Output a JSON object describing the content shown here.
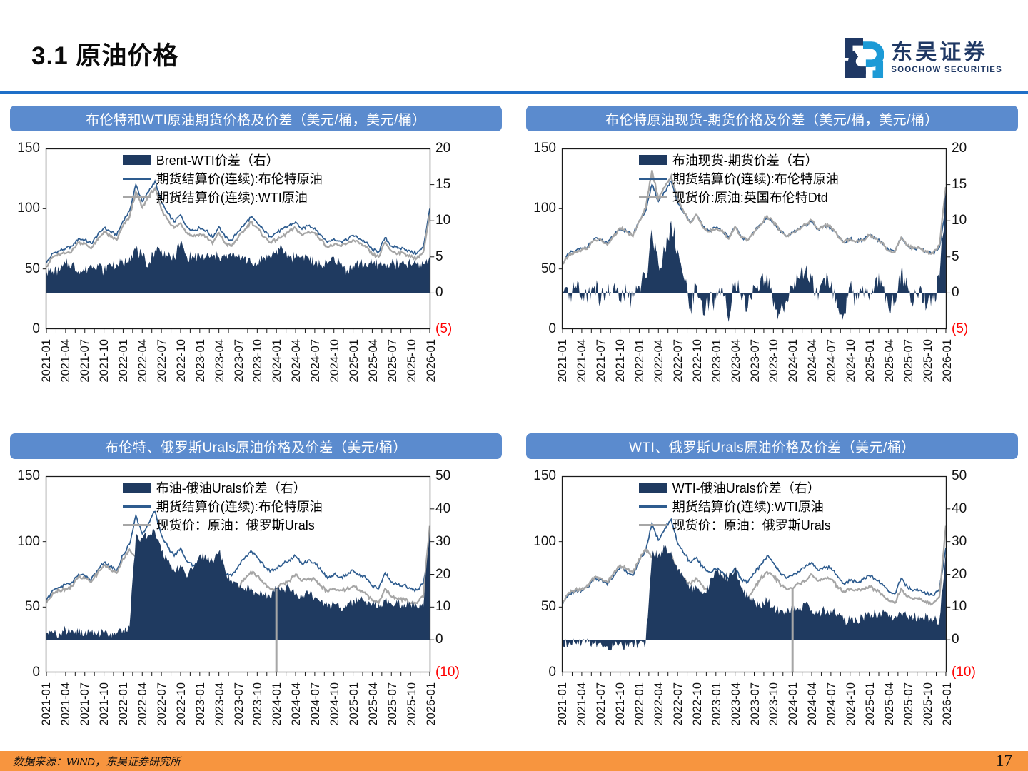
{
  "page": {
    "title": "3.1 原油价格",
    "footer_source": "数据来源：WIND，东吴证券研究所",
    "page_number": "17"
  },
  "logo": {
    "name_cn": "东吴证券",
    "name_en": "SOOCHOW SECURITIES"
  },
  "colors": {
    "accent_divider": "#1e6fc8",
    "header_bar": "#5b8bce",
    "navy": "#1f3a60",
    "line_blue": "#2e5c8f",
    "line_gray": "#a6a6a6",
    "red": "#ff0000",
    "footer_orange": "#f7953f",
    "logo_navy": "#1f3864",
    "logo_lightblue": "#1c9ad6"
  },
  "x_tick_labels": [
    "2021-01",
    "2021-04",
    "2021-07",
    "2021-10",
    "2022-01",
    "2022-04",
    "2022-07",
    "2022-10",
    "2023-01",
    "2023-04",
    "2023-07",
    "2023-10",
    "2024-01",
    "2024-04",
    "2024-07",
    "2024-10",
    "2025-01",
    "2025-04",
    "2025-07",
    "2025-10",
    "2026-01"
  ],
  "chart_data": [
    {
      "type": "line+area",
      "title": "布伦特和WTI原油期货价格及价差（美元/桶，美元/桶）",
      "x_start": "2021-01",
      "x_end": "2026-01",
      "x_freq": "monthly",
      "left_axis": {
        "min": 0,
        "max": 150,
        "ticks": [
          150,
          100,
          50,
          0
        ]
      },
      "right_axis": {
        "min": -5,
        "max": 20,
        "ticks": [
          {
            "label": "20",
            "value": 20
          },
          {
            "label": "15",
            "value": 15
          },
          {
            "label": "10",
            "value": 10
          },
          {
            "label": "5",
            "value": 5
          },
          {
            "label": "0",
            "value": 0
          },
          {
            "label": "(5)",
            "value": -5,
            "red": true
          }
        ]
      },
      "series": [
        {
          "name": "Brent-WTI价差（右）",
          "kind": "area",
          "axis": "right",
          "color": "navy",
          "values": [
            3,
            3,
            3,
            4,
            4,
            3,
            3,
            4,
            4,
            3,
            4,
            4,
            4,
            5,
            6,
            5,
            4,
            6,
            6,
            5,
            5,
            7,
            5,
            5,
            5,
            5,
            5,
            5,
            5,
            5,
            5,
            5,
            4,
            4,
            5,
            5,
            6,
            6,
            5,
            5,
            5,
            5,
            4,
            4,
            4,
            5,
            4,
            3,
            4,
            4,
            4,
            4,
            4,
            4,
            4,
            4,
            4,
            4,
            4,
            4,
            5
          ]
        },
        {
          "name": "期货结算价(连续):布伦特原油",
          "kind": "line",
          "axis": "left",
          "color": "line_blue",
          "values": [
            55,
            63,
            65,
            67,
            69,
            75,
            74,
            71,
            78,
            84,
            81,
            78,
            90,
            98,
            120,
            106,
            114,
            123,
            105,
            96,
            89,
            95,
            85,
            82,
            84,
            82,
            76,
            85,
            76,
            74,
            81,
            87,
            93,
            88,
            82,
            77,
            80,
            83,
            86,
            89,
            83,
            86,
            84,
            78,
            72,
            75,
            73,
            74,
            78,
            75,
            72,
            66,
            64,
            76,
            69,
            67,
            67,
            64,
            63,
            68,
            100
          ]
        },
        {
          "name": "期货结算价(连续):WTI原油",
          "kind": "line",
          "axis": "left",
          "color": "line_gray",
          "values": [
            52,
            60,
            62,
            63,
            65,
            72,
            71,
            67,
            74,
            81,
            77,
            74,
            86,
            93,
            114,
            101,
            110,
            117,
            99,
            91,
            84,
            88,
            80,
            77,
            79,
            77,
            71,
            80,
            71,
            69,
            76,
            82,
            89,
            84,
            77,
            72,
            74,
            77,
            81,
            84,
            78,
            81,
            80,
            74,
            68,
            70,
            69,
            71,
            74,
            71,
            68,
            62,
            60,
            72,
            65,
            63,
            63,
            60,
            59,
            64,
            95
          ]
        }
      ]
    },
    {
      "type": "line+area",
      "title": "布伦特原油现货-期货价格及价差（美元/桶，美元/桶）",
      "x_start": "2021-01",
      "x_end": "2026-01",
      "x_freq": "monthly",
      "left_axis": {
        "min": 0,
        "max": 150,
        "ticks": [
          150,
          100,
          50,
          0
        ]
      },
      "right_axis": {
        "min": -5,
        "max": 20,
        "ticks": [
          {
            "label": "20",
            "value": 20
          },
          {
            "label": "15",
            "value": 15
          },
          {
            "label": "10",
            "value": 10
          },
          {
            "label": "5",
            "value": 5
          },
          {
            "label": "0",
            "value": 0
          },
          {
            "label": "(5)",
            "value": -5,
            "red": true
          }
        ]
      },
      "series": [
        {
          "name": "布油现货-期货价差（右）",
          "kind": "area",
          "axis": "right",
          "color": "navy",
          "values": [
            0,
            -1,
            1,
            -1,
            0,
            1,
            -1,
            0,
            1,
            -1,
            0,
            -1,
            1,
            2,
            9,
            4,
            6,
            10,
            6,
            2,
            -2,
            1,
            -3,
            -1,
            -1,
            1,
            -4,
            2,
            -1,
            -2,
            1,
            2,
            3,
            -2,
            -3,
            -1,
            1,
            2,
            3,
            2,
            -1,
            2,
            1,
            -2,
            -3,
            1,
            -1,
            1,
            -1,
            2,
            1,
            -2,
            -1,
            3,
            1,
            -1,
            1,
            -2,
            -1,
            2,
            14
          ]
        },
        {
          "name": "期货结算价(连续):布伦特原油",
          "kind": "line",
          "axis": "left",
          "color": "line_blue",
          "values": [
            55,
            63,
            65,
            67,
            69,
            75,
            74,
            71,
            78,
            84,
            81,
            78,
            90,
            98,
            120,
            106,
            114,
            123,
            105,
            96,
            89,
            95,
            85,
            82,
            84,
            82,
            76,
            85,
            76,
            74,
            81,
            87,
            93,
            88,
            82,
            77,
            80,
            83,
            86,
            89,
            83,
            86,
            84,
            78,
            72,
            75,
            73,
            74,
            78,
            75,
            72,
            66,
            64,
            76,
            69,
            67,
            67,
            64,
            63,
            68,
            100
          ]
        },
        {
          "name": "现货价:原油:英国布伦特Dtd",
          "kind": "line",
          "axis": "left",
          "color": "line_gray",
          "values": [
            54,
            62,
            64,
            66,
            68,
            74,
            74,
            70,
            77,
            84,
            81,
            77,
            90,
            100,
            132,
            108,
            118,
            127,
            109,
            97,
            88,
            95,
            84,
            81,
            83,
            82,
            75,
            85,
            76,
            74,
            81,
            87,
            94,
            89,
            82,
            77,
            80,
            83,
            87,
            90,
            83,
            86,
            85,
            78,
            72,
            75,
            73,
            74,
            78,
            75,
            72,
            65,
            64,
            76,
            69,
            67,
            67,
            64,
            63,
            70,
            118
          ]
        }
      ]
    },
    {
      "type": "line+area",
      "title": "布伦特、俄罗斯Urals原油价格及价差（美元/桶）",
      "x_start": "2021-01",
      "x_end": "2026-01",
      "x_freq": "monthly",
      "left_axis": {
        "min": 0,
        "max": 150,
        "ticks": [
          150,
          100,
          50,
          0
        ]
      },
      "right_axis": {
        "min": -10,
        "max": 50,
        "ticks": [
          {
            "label": "50",
            "value": 50
          },
          {
            "label": "40",
            "value": 40
          },
          {
            "label": "30",
            "value": 30
          },
          {
            "label": "20",
            "value": 20
          },
          {
            "label": "10",
            "value": 10
          },
          {
            "label": "0",
            "value": 0
          },
          {
            "label": "(10)",
            "value": -10,
            "red": true
          }
        ]
      },
      "vline": {
        "x_index": 36,
        "color": "line_gray",
        "note": "spot price data gap 2024-01"
      },
      "series": [
        {
          "name": "布油-俄油Urals价差（右）",
          "kind": "area",
          "axis": "right",
          "color": "navy",
          "values": [
            2,
            2,
            2,
            3,
            3,
            2,
            2,
            2,
            2,
            2,
            2,
            2,
            3,
            4,
            32,
            31,
            32,
            33,
            27,
            24,
            21,
            23,
            19,
            22,
            26,
            25,
            24,
            27,
            21,
            18,
            17,
            15,
            16,
            14,
            14,
            13,
            16,
            15,
            16,
            14,
            13,
            14,
            13,
            12,
            10,
            11,
            10,
            10,
            12,
            12,
            12,
            11,
            11,
            12,
            11,
            11,
            11,
            11,
            10,
            10,
            33
          ]
        },
        {
          "name": "期货结算价(连续):布伦特原油",
          "kind": "line",
          "axis": "left",
          "color": "line_blue",
          "values": [
            55,
            63,
            65,
            67,
            69,
            75,
            74,
            71,
            78,
            84,
            81,
            78,
            90,
            98,
            120,
            106,
            114,
            123,
            105,
            96,
            89,
            95,
            85,
            82,
            84,
            82,
            76,
            85,
            76,
            74,
            81,
            87,
            93,
            88,
            82,
            77,
            80,
            83,
            86,
            89,
            83,
            86,
            84,
            78,
            72,
            75,
            73,
            74,
            78,
            75,
            72,
            66,
            64,
            76,
            69,
            67,
            67,
            64,
            63,
            68,
            100
          ]
        },
        {
          "name": "现货价：原油：俄罗斯Urals",
          "kind": "line",
          "axis": "left",
          "color": "line_gray",
          "values": [
            53,
            61,
            63,
            64,
            66,
            73,
            72,
            69,
            76,
            82,
            79,
            76,
            87,
            94,
            88,
            75,
            82,
            90,
            78,
            72,
            68,
            72,
            66,
            60,
            58,
            57,
            52,
            58,
            55,
            56,
            64,
            72,
            77,
            74,
            68,
            64,
            64,
            68,
            70,
            75,
            70,
            72,
            71,
            66,
            62,
            64,
            63,
            64,
            66,
            63,
            60,
            55,
            53,
            64,
            58,
            56,
            56,
            53,
            53,
            58,
            112
          ]
        }
      ]
    },
    {
      "type": "line+area",
      "title": "WTI、俄罗斯Urals原油价格及价差（美元/桶）",
      "x_start": "2021-01",
      "x_end": "2026-01",
      "x_freq": "monthly",
      "left_axis": {
        "min": 0,
        "max": 150,
        "ticks": [
          150,
          100,
          50,
          0
        ]
      },
      "right_axis": {
        "min": -10,
        "max": 50,
        "ticks": [
          {
            "label": "50",
            "value": 50
          },
          {
            "label": "40",
            "value": 40
          },
          {
            "label": "30",
            "value": 30
          },
          {
            "label": "20",
            "value": 20
          },
          {
            "label": "10",
            "value": 10
          },
          {
            "label": "0",
            "value": 0
          },
          {
            "label": "(10)",
            "value": -10,
            "red": true
          }
        ]
      },
      "vline": {
        "x_index": 36,
        "color": "line_gray",
        "note": "spot price data gap 2024-01"
      },
      "series": [
        {
          "name": "WTI-俄油Urals价差（右）",
          "kind": "area",
          "axis": "right",
          "color": "navy",
          "values": [
            -1,
            -1,
            -1,
            -1,
            -1,
            -1,
            -1,
            -2,
            -2,
            -1,
            -2,
            -2,
            -1,
            -1,
            26,
            26,
            28,
            27,
            21,
            19,
            16,
            16,
            14,
            17,
            21,
            20,
            19,
            22,
            16,
            13,
            12,
            10,
            12,
            10,
            9,
            8,
            10,
            9,
            11,
            9,
            8,
            9,
            9,
            8,
            6,
            6,
            6,
            7,
            8,
            8,
            8,
            7,
            7,
            8,
            7,
            7,
            7,
            7,
            6,
            6,
            27
          ]
        },
        {
          "name": "期货结算价(连续):WTI原油",
          "kind": "line",
          "axis": "left",
          "color": "line_blue",
          "values": [
            52,
            60,
            62,
            63,
            65,
            72,
            71,
            67,
            74,
            81,
            77,
            74,
            86,
            93,
            114,
            101,
            110,
            117,
            99,
            91,
            84,
            88,
            80,
            77,
            79,
            77,
            71,
            80,
            71,
            69,
            76,
            82,
            89,
            84,
            77,
            72,
            74,
            77,
            81,
            84,
            78,
            81,
            80,
            74,
            68,
            70,
            69,
            71,
            74,
            71,
            68,
            62,
            60,
            72,
            65,
            63,
            63,
            60,
            59,
            64,
            95
          ]
        },
        {
          "name": "现货价：原油：俄罗斯Urals",
          "kind": "line",
          "axis": "left",
          "color": "line_gray",
          "values": [
            53,
            61,
            63,
            64,
            66,
            73,
            72,
            69,
            76,
            82,
            79,
            76,
            87,
            94,
            88,
            75,
            82,
            90,
            78,
            72,
            68,
            72,
            66,
            60,
            58,
            57,
            52,
            58,
            55,
            56,
            64,
            72,
            77,
            74,
            68,
            64,
            64,
            68,
            70,
            75,
            70,
            72,
            71,
            66,
            62,
            64,
            63,
            64,
            66,
            63,
            60,
            55,
            53,
            64,
            58,
            56,
            56,
            53,
            53,
            58,
            112
          ]
        }
      ]
    }
  ]
}
